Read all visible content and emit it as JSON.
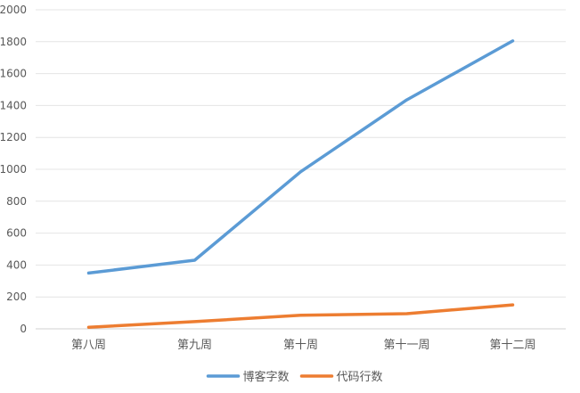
{
  "chart_data": {
    "type": "line",
    "title": "",
    "xlabel": "",
    "ylabel": "",
    "categories": [
      "第八周",
      "第九周",
      "第十周",
      "第十一周",
      "第十二周"
    ],
    "series": [
      {
        "name": "博客字数",
        "values": [
          350,
          430,
          985,
          1435,
          1805
        ],
        "color": "#5b9bd5"
      },
      {
        "name": "代码行数",
        "values": [
          10,
          45,
          85,
          95,
          150
        ],
        "color": "#ed7d31"
      }
    ],
    "ylim": [
      0,
      2000
    ],
    "yticks": [
      0,
      200,
      400,
      600,
      800,
      1000,
      1200,
      1400,
      1600,
      1800,
      2000
    ],
    "grid": true,
    "legend_position": "bottom"
  }
}
